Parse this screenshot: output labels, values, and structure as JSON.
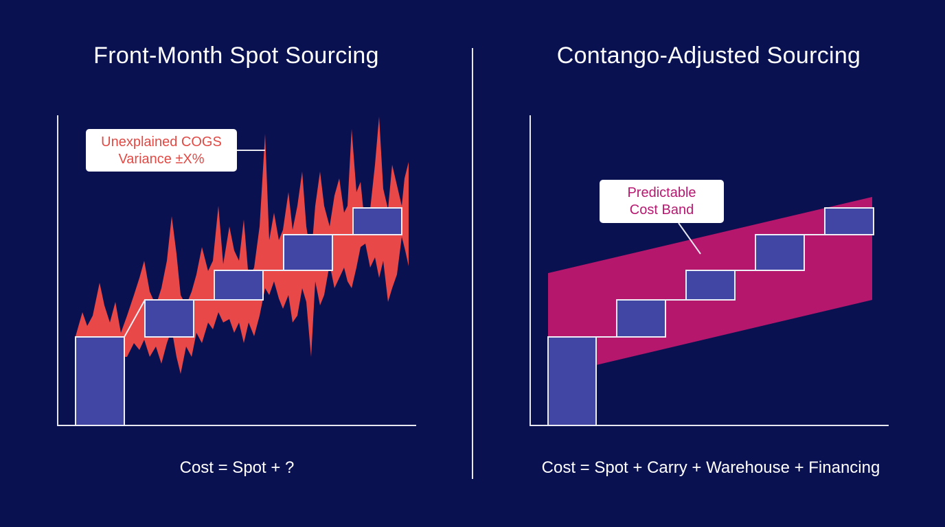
{
  "left_panel": {
    "title": "Front-Month Spot Sourcing",
    "callout_line1": "Unexplained COGS",
    "callout_line2": "Variance ±X%",
    "formula": "Cost = Spot + ?"
  },
  "right_panel": {
    "title": "Contango-Adjusted Sourcing",
    "callout_line1": "Predictable",
    "callout_line2": "Cost Band",
    "formula": "Cost = Spot + Carry + Warehouse + Financing"
  },
  "colors": {
    "background": "#0a1150",
    "step_block": "#4146a4",
    "volatility_fill": "#e84848",
    "band_fill": "#b5176c",
    "axis": "#e8e8f0"
  }
}
